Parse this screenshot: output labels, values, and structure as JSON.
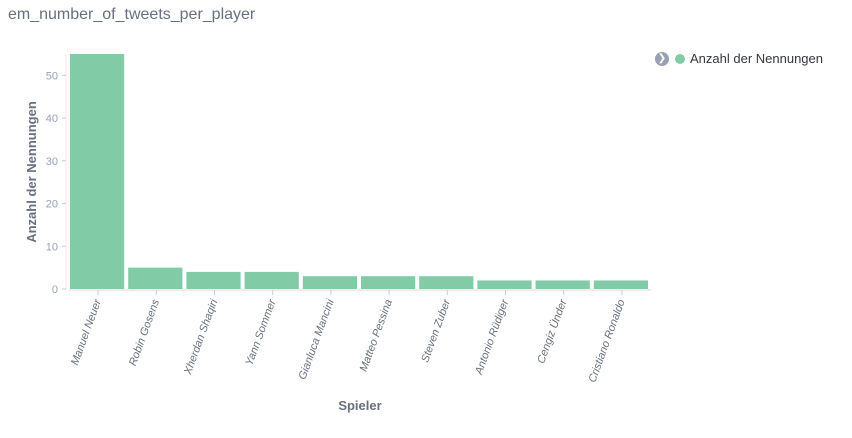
{
  "title": "em_number_of_tweets_per_player",
  "legend": {
    "toggle_icon": "chevron-right-icon",
    "placement": "top-right"
  },
  "chart_data": {
    "type": "bar",
    "xlabel": "Spieler",
    "ylabel": "Anzahl der Nennungen",
    "ylim": [
      0,
      55
    ],
    "yticks": [
      0,
      10,
      20,
      30,
      40,
      50
    ],
    "grid": false,
    "color": "#82cba7",
    "categories": [
      "Manuel Neuer",
      "Robin Gosens",
      "Xherdan Shaqiri",
      "Yann Sommer",
      "Gianluca Mancini",
      "Matteo Pessina",
      "Steven Zuber",
      "Antonio Rüdiger",
      "Cengiz Ünder",
      "Cristiano Ronaldo"
    ],
    "series": [
      {
        "name": "Anzahl der Nennungen",
        "values": [
          55,
          5,
          4,
          4,
          3,
          3,
          3,
          2,
          2,
          2
        ]
      }
    ]
  }
}
